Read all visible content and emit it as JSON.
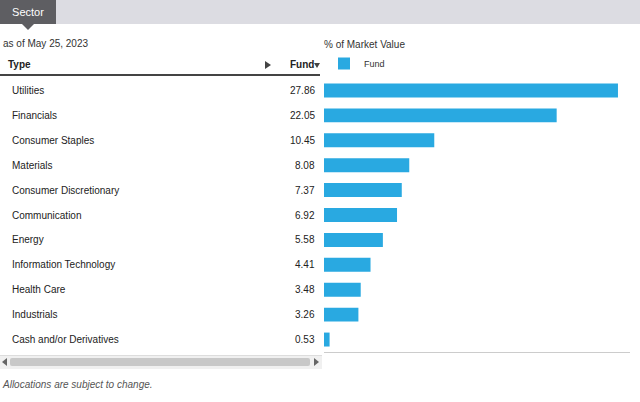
{
  "chart_data": {
    "type": "bar",
    "orientation": "horizontal",
    "title": "Sector",
    "subtitle": "as of May 25, 2023",
    "x_label": "% of Market Value",
    "column_headers": [
      "Type",
      "Fund"
    ],
    "footnote": "Allocations are subject to change.",
    "categories": [
      "Utilities",
      "Financials",
      "Consumer Staples",
      "Materials",
      "Consumer Discretionary",
      "Communication",
      "Energy",
      "Information Technology",
      "Health Care",
      "Industrials",
      "Cash and/or Derivatives"
    ],
    "series": [
      {
        "name": "Fund",
        "color": "#29a9e1",
        "values": [
          27.86,
          22.05,
          10.45,
          8.08,
          7.37,
          6.92,
          5.58,
          4.41,
          3.48,
          3.26,
          0.53
        ]
      }
    ],
    "xlim": [
      0,
      29
    ],
    "data_labels": true,
    "tick_labels": false,
    "legend": "top-left",
    "grid": false
  }
}
